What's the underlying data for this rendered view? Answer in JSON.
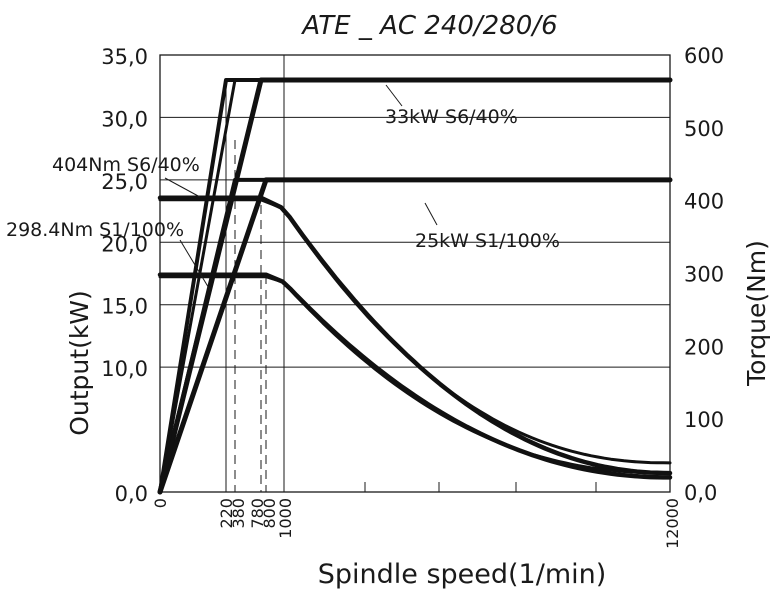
{
  "chart_data": {
    "type": "line",
    "title": "ATE _ AC 240/280/6",
    "xlabel": "Spindle speed(1/min)",
    "ylabel_left": "Output(kW)",
    "ylabel_right": "Torque(Nm)",
    "ylim_left": [
      0,
      35
    ],
    "ylim_right": [
      0,
      600
    ],
    "left_ticks": [
      "0,0",
      "10,0",
      "15,0",
      "20,0",
      "25,0",
      "30,0",
      "35,0"
    ],
    "left_tick_values": [
      0,
      10,
      15,
      20,
      25,
      30,
      35
    ],
    "right_ticks": [
      "0,0",
      "100",
      "200",
      "300",
      "400",
      "500",
      "600"
    ],
    "right_tick_values": [
      0,
      100,
      200,
      300,
      400,
      500,
      600
    ],
    "x_ticks": [
      "0",
      "220",
      "380",
      "780",
      "800",
      "1000",
      "12000"
    ],
    "x_tick_values": [
      0,
      220,
      380,
      780,
      800,
      1000,
      12000
    ],
    "grid": true,
    "series": [
      {
        "name": "33kW S6/40%",
        "axis": "left",
        "kind": "power",
        "points": [
          [
            0,
            0
          ],
          [
            780,
            33
          ],
          [
            12000,
            33
          ]
        ]
      },
      {
        "name": "25kW S1/100%",
        "axis": "left",
        "kind": "power",
        "points": [
          [
            0,
            0
          ],
          [
            800,
            25
          ],
          [
            12000,
            25
          ]
        ]
      },
      {
        "name": "404Nm S6/40%",
        "axis": "right",
        "kind": "torque",
        "break_rpm": 780,
        "torque_nm": 404,
        "points": [
          [
            0,
            404
          ],
          [
            780,
            404
          ],
          [
            12000,
            26
          ]
        ]
      },
      {
        "name": "298.4Nm S1/100%",
        "axis": "right",
        "kind": "torque",
        "break_rpm": 800,
        "torque_nm": 298.4,
        "points": [
          [
            0,
            298.4
          ],
          [
            800,
            298.4
          ],
          [
            12000,
            20
          ]
        ]
      }
    ],
    "annotations": [
      "33kW S6/40%",
      "25kW S1/100%",
      "404Nm S6/40%",
      "298.4Nm S1/100%"
    ]
  }
}
